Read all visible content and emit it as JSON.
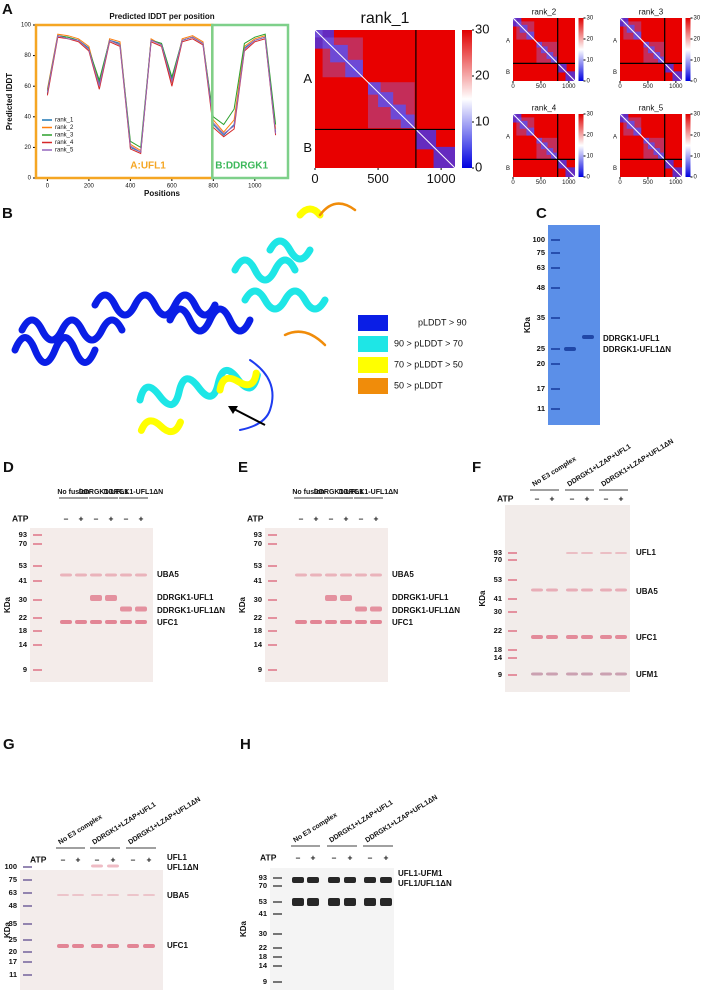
{
  "chart_data": [
    {
      "type": "line",
      "title": "Predicted lDDT per position",
      "x_label": "Positions",
      "y_label": "Predicted lDDT",
      "x": [
        0,
        50,
        100,
        150,
        200,
        250,
        300,
        350,
        400,
        450,
        500,
        550,
        600,
        650,
        700,
        750,
        800,
        850,
        900,
        950,
        1000,
        1050,
        1100
      ],
      "xlim": [
        -55,
        1160
      ],
      "xticks": [
        0,
        200,
        400,
        600,
        800,
        1000
      ],
      "ylim": [
        0,
        100
      ],
      "yticks": [
        0,
        20,
        40,
        60,
        80,
        100
      ],
      "legend": "lower left",
      "annotations": [
        "A:UFL1",
        "B:DDRGK1"
      ],
      "series": [
        {
          "name": "rank_1",
          "color": "#1f77b4",
          "values": [
            55,
            93,
            92,
            90,
            85,
            62,
            90,
            88,
            20,
            17,
            90,
            88,
            65,
            90,
            92,
            88,
            35,
            28,
            35,
            85,
            90,
            92,
            30
          ]
        },
        {
          "name": "rank_2",
          "color": "#ff7f0e",
          "values": [
            58,
            94,
            93,
            91,
            86,
            60,
            91,
            89,
            22,
            18,
            91,
            87,
            62,
            91,
            93,
            89,
            38,
            30,
            38,
            86,
            91,
            93,
            32
          ]
        },
        {
          "name": "rank_3",
          "color": "#2ca02c",
          "values": [
            57,
            93,
            92,
            90,
            84,
            64,
            90,
            87,
            24,
            20,
            90,
            88,
            66,
            90,
            92,
            88,
            40,
            35,
            45,
            88,
            92,
            94,
            35
          ]
        },
        {
          "name": "rank_4",
          "color": "#d62728",
          "values": [
            54,
            92,
            91,
            89,
            83,
            58,
            89,
            86,
            19,
            16,
            89,
            86,
            60,
            89,
            91,
            87,
            33,
            27,
            32,
            83,
            89,
            91,
            28
          ]
        },
        {
          "name": "rank_5",
          "color": "#9467bd",
          "values": [
            56,
            93,
            91,
            90,
            84,
            60,
            90,
            87,
            21,
            17,
            90,
            87,
            63,
            90,
            92,
            88,
            36,
            29,
            34,
            84,
            90,
            92,
            29
          ]
        }
      ]
    },
    {
      "type": "heatmap",
      "title": "rank_1",
      "xlim": [
        0,
        1110
      ],
      "xticks": [
        0,
        500,
        1000
      ],
      "ylabels": [
        "A",
        "B"
      ],
      "clim": [
        0,
        30
      ],
      "cticks": [
        0,
        10,
        20,
        30
      ]
    },
    {
      "type": "heatmap",
      "title": "rank_2",
      "xlim": [
        0,
        1110
      ],
      "xticks": [
        0,
        500,
        1000
      ],
      "ylabels": [
        "A",
        "B"
      ],
      "clim": [
        0,
        30
      ],
      "cticks": [
        0,
        10,
        20,
        30
      ]
    },
    {
      "type": "heatmap",
      "title": "rank_3",
      "xlim": [
        0,
        1110
      ],
      "xticks": [
        0,
        500,
        1000
      ],
      "ylabels": [
        "A",
        "B"
      ],
      "clim": [
        0,
        30
      ],
      "cticks": [
        0,
        10,
        20,
        30
      ]
    },
    {
      "type": "heatmap",
      "title": "rank_4",
      "xlim": [
        0,
        1110
      ],
      "xticks": [
        0,
        500,
        1000
      ],
      "ylabels": [
        "A",
        "B"
      ],
      "clim": [
        0,
        30
      ],
      "cticks": [
        0,
        10,
        20,
        30
      ]
    },
    {
      "type": "heatmap",
      "title": "rank_5",
      "xlim": [
        0,
        1110
      ],
      "xticks": [
        0,
        500,
        1000
      ],
      "ylabels": [
        "A",
        "B"
      ],
      "clim": [
        0,
        30
      ],
      "cticks": [
        0,
        10,
        20,
        30
      ]
    }
  ],
  "panel_A": {
    "label": "A"
  },
  "panel_B": {
    "label": "B",
    "legend": [
      "pLDDT > 90",
      "90 > pLDDT > 70",
      "70 > pLDDT > 50",
      "50 > pLDDT"
    ],
    "legend_colors": [
      "#0a1ee6",
      "#1ee6e6",
      "#ffff00",
      "#f08c0a"
    ]
  },
  "gels": {
    "C": {
      "label": "C",
      "unit": "KDa",
      "markers": [
        100,
        75,
        63,
        48,
        35,
        25,
        20,
        17,
        11
      ],
      "bands": [
        "DDRGK1-UFL1",
        "DDRGK1-UFL1ΔN"
      ]
    },
    "D": {
      "label": "D",
      "groups": [
        "No fusion",
        "DDRGK1-UFL1",
        "DDRGK1-UFL1ΔN"
      ],
      "atp": "ATP",
      "lanes": [
        "–",
        "+",
        "–",
        "+",
        "–",
        "+"
      ],
      "unit": "KDa",
      "markers": [
        93,
        70,
        53,
        41,
        30,
        22,
        18,
        14,
        9
      ],
      "bands": [
        "UBA5",
        "DDRGK1-UFL1",
        "DDRGK1-UFL1ΔN",
        "UFC1"
      ]
    },
    "E": {
      "label": "E",
      "groups": [
        "No fusion",
        "DDRGK1-UFL1",
        "DDRGK1-UFL1ΔN"
      ],
      "atp": "ATP",
      "lanes": [
        "–",
        "+",
        "–",
        "+",
        "–",
        "+"
      ],
      "unit": "KDa",
      "markers": [
        93,
        70,
        53,
        41,
        30,
        22,
        18,
        14,
        9
      ],
      "bands": [
        "UBA5",
        "DDRGK1-UFL1",
        "DDRGK1-UFL1ΔN",
        "UFC1"
      ]
    },
    "F": {
      "label": "F",
      "groups": [
        "No E3 complex",
        "DDRGK1+LZAP+UFL1",
        "DDRGK1+LZAP+UFL1ΔN"
      ],
      "atp": "ATP",
      "lanes": [
        "–",
        "+",
        "–",
        "+",
        "–",
        "+"
      ],
      "unit": "KDa",
      "markers": [
        93,
        70,
        53,
        41,
        30,
        22,
        18,
        14,
        9
      ],
      "bands": [
        "UFL1",
        "UBA5",
        "UFC1",
        "UFM1"
      ]
    },
    "G": {
      "label": "G",
      "groups": [
        "No E3 complex",
        "DDRGK1+LZAP+UFL1",
        "DDRGK1+LZAP+UFL1ΔN"
      ],
      "atp": "ATP",
      "lanes": [
        "–",
        "+",
        "–",
        "+",
        "–",
        "+"
      ],
      "unit": "KDa",
      "markers": [
        100,
        75,
        63,
        48,
        35,
        25,
        20,
        17,
        11
      ],
      "bands": [
        "UFL1",
        "UFL1ΔN",
        "UBA5",
        "UFC1"
      ]
    },
    "H": {
      "label": "H",
      "groups": [
        "No E3 complex",
        "DDRGK1+LZAP+UFL1",
        "DDRGK1+LZAP+UFL1ΔN"
      ],
      "atp": "ATP",
      "lanes": [
        "–",
        "+",
        "–",
        "+",
        "–",
        "+"
      ],
      "unit": "KDa",
      "markers": [
        93,
        70,
        53,
        41,
        30,
        22,
        18,
        14,
        9
      ],
      "bands": [
        "UFL1-UFM1",
        "UFL1/UFL1ΔN"
      ]
    }
  }
}
